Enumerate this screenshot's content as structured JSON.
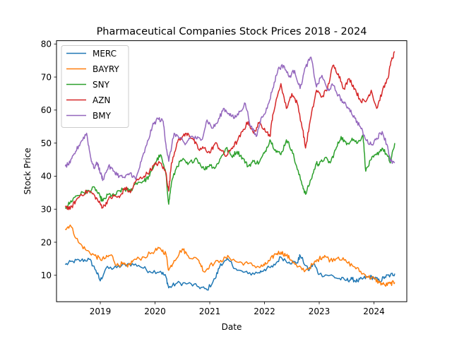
{
  "chart_data": {
    "type": "line",
    "title": "Pharmaceutical Companies Stock Prices 2018 - 2024",
    "xlabel": "Date",
    "ylabel": "Stock Price",
    "x_unit": "year",
    "xlim": [
      2018.2,
      2024.6
    ],
    "ylim": [
      2,
      81
    ],
    "xticks": [
      2019,
      2020,
      2021,
      2022,
      2023,
      2024
    ],
    "xtick_labels": [
      "2019",
      "2020",
      "2021",
      "2022",
      "2023",
      "2024"
    ],
    "yticks": [
      10,
      20,
      30,
      40,
      50,
      60,
      70,
      80
    ],
    "ytick_labels": [
      "10",
      "20",
      "30",
      "40",
      "50",
      "60",
      "70",
      "80"
    ],
    "grid": false,
    "legend_position": "top-left",
    "series": [
      {
        "name": "MERC",
        "color": "#1f77b4",
        "points": [
          [
            2018.36,
            13.2
          ],
          [
            2018.5,
            14.2
          ],
          [
            2018.65,
            14.5
          ],
          [
            2018.8,
            14.8
          ],
          [
            2018.92,
            11.5
          ],
          [
            2019.0,
            8.3
          ],
          [
            2019.1,
            12.0
          ],
          [
            2019.3,
            12.3
          ],
          [
            2019.5,
            13.5
          ],
          [
            2019.7,
            13.0
          ],
          [
            2019.9,
            11.2
          ],
          [
            2020.1,
            11.2
          ],
          [
            2020.2,
            9.5
          ],
          [
            2020.25,
            6.2
          ],
          [
            2020.4,
            7.6
          ],
          [
            2020.6,
            7.5
          ],
          [
            2020.8,
            6.5
          ],
          [
            2020.95,
            5.6
          ],
          [
            2021.1,
            9.0
          ],
          [
            2021.2,
            13.5
          ],
          [
            2021.35,
            14.5
          ],
          [
            2021.5,
            11.5
          ],
          [
            2021.7,
            10.5
          ],
          [
            2021.9,
            10.8
          ],
          [
            2022.0,
            11.8
          ],
          [
            2022.15,
            12.5
          ],
          [
            2022.3,
            15.5
          ],
          [
            2022.45,
            14.0
          ],
          [
            2022.6,
            13.8
          ],
          [
            2022.65,
            16.0
          ],
          [
            2022.8,
            11.5
          ],
          [
            2022.9,
            13.5
          ],
          [
            2023.0,
            10.3
          ],
          [
            2023.2,
            10.0
          ],
          [
            2023.35,
            9.0
          ],
          [
            2023.5,
            8.5
          ],
          [
            2023.6,
            8.8
          ],
          [
            2023.7,
            8.2
          ],
          [
            2023.8,
            9.0
          ],
          [
            2023.9,
            9.5
          ],
          [
            2024.0,
            9.3
          ],
          [
            2024.1,
            8.2
          ],
          [
            2024.2,
            9.5
          ],
          [
            2024.3,
            10.0
          ],
          [
            2024.38,
            10.5
          ]
        ]
      },
      {
        "name": "BAYRY",
        "color": "#ff7f0e",
        "points": [
          [
            2018.36,
            24.0
          ],
          [
            2018.45,
            25.2
          ],
          [
            2018.6,
            20.0
          ],
          [
            2018.75,
            17.5
          ],
          [
            2018.9,
            16.0
          ],
          [
            2019.0,
            14.8
          ],
          [
            2019.1,
            15.2
          ],
          [
            2019.2,
            16.2
          ],
          [
            2019.3,
            13.0
          ],
          [
            2019.4,
            13.5
          ],
          [
            2019.5,
            12.5
          ],
          [
            2019.6,
            14.5
          ],
          [
            2019.8,
            15.5
          ],
          [
            2020.0,
            17.5
          ],
          [
            2020.1,
            18.0
          ],
          [
            2020.2,
            16.5
          ],
          [
            2020.25,
            11.5
          ],
          [
            2020.35,
            14.5
          ],
          [
            2020.5,
            18.0
          ],
          [
            2020.6,
            16.0
          ],
          [
            2020.8,
            14.5
          ],
          [
            2020.9,
            11.0
          ],
          [
            2021.0,
            13.0
          ],
          [
            2021.2,
            14.5
          ],
          [
            2021.35,
            15.5
          ],
          [
            2021.5,
            14.0
          ],
          [
            2021.7,
            13.5
          ],
          [
            2021.9,
            12.5
          ],
          [
            2022.0,
            13.0
          ],
          [
            2022.1,
            14.5
          ],
          [
            2022.2,
            16.5
          ],
          [
            2022.3,
            17.0
          ],
          [
            2022.4,
            16.0
          ],
          [
            2022.5,
            14.5
          ],
          [
            2022.6,
            12.5
          ],
          [
            2022.75,
            11.5
          ],
          [
            2022.9,
            13.5
          ],
          [
            2023.0,
            15.0
          ],
          [
            2023.1,
            16.0
          ],
          [
            2023.2,
            14.5
          ],
          [
            2023.35,
            15.5
          ],
          [
            2023.5,
            14.0
          ],
          [
            2023.65,
            12.5
          ],
          [
            2023.8,
            10.5
          ],
          [
            2023.9,
            9.5
          ],
          [
            2024.0,
            9.0
          ],
          [
            2024.1,
            7.8
          ],
          [
            2024.2,
            7.0
          ],
          [
            2024.3,
            7.5
          ],
          [
            2024.38,
            7.8
          ]
        ]
      },
      {
        "name": "SNY",
        "color": "#2ca02c",
        "points": [
          [
            2018.36,
            30.5
          ],
          [
            2018.45,
            32.0
          ],
          [
            2018.55,
            34.0
          ],
          [
            2018.7,
            35.0
          ],
          [
            2018.8,
            35.5
          ],
          [
            2018.9,
            36.5
          ],
          [
            2019.0,
            33.5
          ],
          [
            2019.05,
            32.5
          ],
          [
            2019.15,
            34.5
          ],
          [
            2019.25,
            34.0
          ],
          [
            2019.35,
            35.5
          ],
          [
            2019.45,
            36.0
          ],
          [
            2019.55,
            35.5
          ],
          [
            2019.65,
            38.0
          ],
          [
            2019.8,
            38.5
          ],
          [
            2019.9,
            40.0
          ],
          [
            2020.0,
            44.0
          ],
          [
            2020.1,
            46.5
          ],
          [
            2020.2,
            40.5
          ],
          [
            2020.25,
            31.5
          ],
          [
            2020.3,
            38.0
          ],
          [
            2020.4,
            43.0
          ],
          [
            2020.5,
            45.0
          ],
          [
            2020.6,
            43.5
          ],
          [
            2020.75,
            45.5
          ],
          [
            2020.9,
            42.0
          ],
          [
            2021.0,
            43.5
          ],
          [
            2021.1,
            42.5
          ],
          [
            2021.2,
            45.5
          ],
          [
            2021.3,
            48.5
          ],
          [
            2021.4,
            46.0
          ],
          [
            2021.5,
            47.5
          ],
          [
            2021.6,
            45.5
          ],
          [
            2021.7,
            43.0
          ],
          [
            2021.8,
            44.5
          ],
          [
            2021.9,
            44.0
          ],
          [
            2022.0,
            47.0
          ],
          [
            2022.1,
            51.0
          ],
          [
            2022.2,
            48.0
          ],
          [
            2022.3,
            46.5
          ],
          [
            2022.4,
            51.0
          ],
          [
            2022.5,
            48.0
          ],
          [
            2022.6,
            42.0
          ],
          [
            2022.7,
            37.0
          ],
          [
            2022.75,
            34.5
          ],
          [
            2022.85,
            39.0
          ],
          [
            2022.95,
            44.0
          ],
          [
            2023.0,
            43.5
          ],
          [
            2023.1,
            45.5
          ],
          [
            2023.2,
            44.0
          ],
          [
            2023.3,
            48.0
          ],
          [
            2023.4,
            52.0
          ],
          [
            2023.5,
            49.5
          ],
          [
            2023.6,
            51.5
          ],
          [
            2023.7,
            50.0
          ],
          [
            2023.8,
            52.5
          ],
          [
            2023.85,
            41.5
          ],
          [
            2023.95,
            45.0
          ],
          [
            2024.05,
            46.5
          ],
          [
            2024.15,
            48.5
          ],
          [
            2024.25,
            46.0
          ],
          [
            2024.3,
            44.0
          ],
          [
            2024.38,
            50.0
          ]
        ]
      },
      {
        "name": "AZN",
        "color": "#d62728",
        "points": [
          [
            2018.36,
            31.0
          ],
          [
            2018.45,
            30.0
          ],
          [
            2018.55,
            32.5
          ],
          [
            2018.65,
            34.5
          ],
          [
            2018.8,
            35.5
          ],
          [
            2018.9,
            34.0
          ],
          [
            2019.0,
            31.5
          ],
          [
            2019.05,
            30.5
          ],
          [
            2019.15,
            33.0
          ],
          [
            2019.25,
            34.0
          ],
          [
            2019.35,
            33.5
          ],
          [
            2019.45,
            36.5
          ],
          [
            2019.55,
            35.0
          ],
          [
            2019.65,
            38.5
          ],
          [
            2019.8,
            40.0
          ],
          [
            2019.9,
            41.5
          ],
          [
            2020.0,
            43.5
          ],
          [
            2020.1,
            44.0
          ],
          [
            2020.2,
            41.0
          ],
          [
            2020.25,
            35.5
          ],
          [
            2020.3,
            44.0
          ],
          [
            2020.4,
            50.0
          ],
          [
            2020.5,
            52.0
          ],
          [
            2020.6,
            53.0
          ],
          [
            2020.7,
            51.0
          ],
          [
            2020.8,
            48.0
          ],
          [
            2020.9,
            48.5
          ],
          [
            2021.0,
            47.0
          ],
          [
            2021.1,
            50.0
          ],
          [
            2021.2,
            48.0
          ],
          [
            2021.3,
            46.0
          ],
          [
            2021.4,
            48.5
          ],
          [
            2021.5,
            50.5
          ],
          [
            2021.6,
            53.5
          ],
          [
            2021.7,
            56.5
          ],
          [
            2021.8,
            53.0
          ],
          [
            2021.9,
            56.0
          ],
          [
            2022.0,
            54.5
          ],
          [
            2022.1,
            52.0
          ],
          [
            2022.15,
            58.5
          ],
          [
            2022.3,
            68.0
          ],
          [
            2022.4,
            60.5
          ],
          [
            2022.5,
            65.0
          ],
          [
            2022.6,
            62.0
          ],
          [
            2022.7,
            54.0
          ],
          [
            2022.75,
            48.5
          ],
          [
            2022.85,
            58.0
          ],
          [
            2022.95,
            66.0
          ],
          [
            2023.05,
            64.0
          ],
          [
            2023.15,
            66.5
          ],
          [
            2023.25,
            73.5
          ],
          [
            2023.35,
            71.0
          ],
          [
            2023.45,
            66.5
          ],
          [
            2023.55,
            69.5
          ],
          [
            2023.65,
            66.5
          ],
          [
            2023.75,
            63.0
          ],
          [
            2023.85,
            62.5
          ],
          [
            2023.95,
            66.0
          ],
          [
            2024.05,
            60.5
          ],
          [
            2024.15,
            65.5
          ],
          [
            2024.25,
            69.5
          ],
          [
            2024.32,
            75.0
          ],
          [
            2024.38,
            77.5
          ]
        ]
      },
      {
        "name": "BMY",
        "color": "#9467bd",
        "points": [
          [
            2018.36,
            43.0
          ],
          [
            2018.45,
            44.0
          ],
          [
            2018.55,
            47.5
          ],
          [
            2018.65,
            50.5
          ],
          [
            2018.75,
            53.0
          ],
          [
            2018.82,
            46.0
          ],
          [
            2018.88,
            42.5
          ],
          [
            2018.95,
            44.0
          ],
          [
            2019.0,
            41.0
          ],
          [
            2019.05,
            39.0
          ],
          [
            2019.15,
            43.0
          ],
          [
            2019.25,
            41.5
          ],
          [
            2019.35,
            40.0
          ],
          [
            2019.45,
            39.5
          ],
          [
            2019.55,
            41.0
          ],
          [
            2019.65,
            39.0
          ],
          [
            2019.75,
            44.5
          ],
          [
            2019.85,
            49.5
          ],
          [
            2019.95,
            55.0
          ],
          [
            2020.05,
            57.5
          ],
          [
            2020.15,
            56.5
          ],
          [
            2020.2,
            49.5
          ],
          [
            2020.25,
            44.5
          ],
          [
            2020.35,
            53.0
          ],
          [
            2020.45,
            51.5
          ],
          [
            2020.55,
            49.5
          ],
          [
            2020.65,
            52.0
          ],
          [
            2020.75,
            51.5
          ],
          [
            2020.85,
            51.0
          ],
          [
            2020.95,
            57.0
          ],
          [
            2021.05,
            54.5
          ],
          [
            2021.15,
            56.5
          ],
          [
            2021.25,
            60.5
          ],
          [
            2021.35,
            59.0
          ],
          [
            2021.45,
            57.5
          ],
          [
            2021.55,
            59.5
          ],
          [
            2021.65,
            62.0
          ],
          [
            2021.75,
            55.0
          ],
          [
            2021.85,
            52.0
          ],
          [
            2021.95,
            58.0
          ],
          [
            2022.05,
            60.5
          ],
          [
            2022.15,
            66.5
          ],
          [
            2022.25,
            72.5
          ],
          [
            2022.35,
            73.5
          ],
          [
            2022.45,
            70.0
          ],
          [
            2022.55,
            72.0
          ],
          [
            2022.65,
            66.5
          ],
          [
            2022.75,
            73.0
          ],
          [
            2022.85,
            76.0
          ],
          [
            2022.95,
            67.0
          ],
          [
            2023.05,
            70.5
          ],
          [
            2023.15,
            66.0
          ],
          [
            2023.25,
            67.5
          ],
          [
            2023.35,
            64.5
          ],
          [
            2023.45,
            62.0
          ],
          [
            2023.55,
            60.5
          ],
          [
            2023.65,
            57.5
          ],
          [
            2023.75,
            55.0
          ],
          [
            2023.85,
            51.0
          ],
          [
            2023.95,
            49.5
          ],
          [
            2024.05,
            51.5
          ],
          [
            2024.15,
            53.5
          ],
          [
            2024.25,
            49.0
          ],
          [
            2024.3,
            44.5
          ],
          [
            2024.38,
            44.0
          ]
        ]
      }
    ]
  }
}
